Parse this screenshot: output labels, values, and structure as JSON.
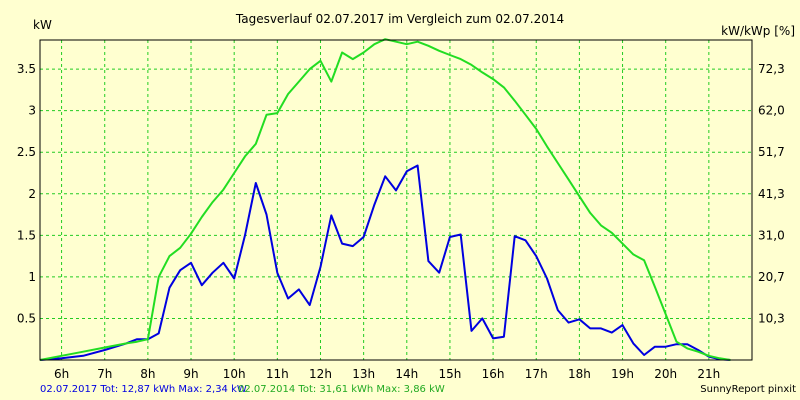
{
  "chart_data": {
    "type": "line",
    "title": "Tagesverlauf 02.07.2017 im Vergleich zum 02.07.2014",
    "ylabel_left": "kW",
    "ylabel_right": "kW/kWp [%]",
    "xlim": [
      5.5,
      22
    ],
    "ylim": [
      0,
      3.85
    ],
    "grid": true,
    "x_ticks": [
      {
        "value": 6,
        "label": "6h"
      },
      {
        "value": 7,
        "label": "7h"
      },
      {
        "value": 8,
        "label": "8h"
      },
      {
        "value": 9,
        "label": "9h"
      },
      {
        "value": 10,
        "label": "10h"
      },
      {
        "value": 11,
        "label": "11h"
      },
      {
        "value": 12,
        "label": "12h"
      },
      {
        "value": 13,
        "label": "13h"
      },
      {
        "value": 14,
        "label": "14h"
      },
      {
        "value": 15,
        "label": "15h"
      },
      {
        "value": 16,
        "label": "16h"
      },
      {
        "value": 17,
        "label": "17h"
      },
      {
        "value": 18,
        "label": "18h"
      },
      {
        "value": 19,
        "label": "19h"
      },
      {
        "value": 20,
        "label": "20h"
      },
      {
        "value": 21,
        "label": "21h"
      }
    ],
    "y_ticks_left": [
      {
        "value": 0.5,
        "label": "0.5"
      },
      {
        "value": 1,
        "label": "1"
      },
      {
        "value": 1.5,
        "label": "1.5"
      },
      {
        "value": 2,
        "label": "2"
      },
      {
        "value": 2.5,
        "label": "2.5"
      },
      {
        "value": 3,
        "label": "3"
      },
      {
        "value": 3.5,
        "label": "3.5"
      }
    ],
    "y_ticks_right": [
      {
        "value": 0.5,
        "label": "10,3"
      },
      {
        "value": 1,
        "label": "20,7"
      },
      {
        "value": 1.5,
        "label": "31,0"
      },
      {
        "value": 2,
        "label": "41,3"
      },
      {
        "value": 2.5,
        "label": "51,7"
      },
      {
        "value": 3,
        "label": "62,0"
      },
      {
        "value": 3.5,
        "label": "72,3"
      }
    ],
    "series": [
      {
        "color": "#0000e0",
        "x": [
          5.5,
          6.0,
          6.5,
          7.0,
          7.5,
          7.75,
          8.0,
          8.25,
          8.5,
          8.75,
          9.0,
          9.25,
          9.5,
          9.75,
          10.0,
          10.25,
          10.5,
          10.75,
          11.0,
          11.25,
          11.5,
          11.75,
          12.0,
          12.25,
          12.5,
          12.75,
          13.0,
          13.25,
          13.5,
          13.75,
          14.0,
          14.25,
          14.5,
          14.75,
          15.0,
          15.25,
          15.5,
          15.75,
          16.0,
          16.25,
          16.5,
          16.75,
          17.0,
          17.25,
          17.5,
          17.75,
          18.0,
          18.25,
          18.5,
          18.75,
          19.0,
          19.25,
          19.5,
          19.75,
          20.0,
          20.25,
          20.5,
          20.75,
          21.0,
          21.25,
          21.5
        ],
        "y": [
          0.0,
          0.02,
          0.05,
          0.12,
          0.2,
          0.25,
          0.25,
          0.32,
          0.87,
          1.08,
          1.17,
          0.9,
          1.05,
          1.17,
          0.98,
          1.5,
          2.13,
          1.75,
          1.05,
          0.74,
          0.85,
          0.66,
          1.12,
          1.74,
          1.4,
          1.37,
          1.48,
          1.87,
          2.21,
          2.04,
          2.27,
          2.34,
          1.19,
          1.05,
          1.48,
          1.51,
          0.35,
          0.5,
          0.26,
          0.28,
          1.49,
          1.44,
          1.25,
          0.98,
          0.6,
          0.45,
          0.49,
          0.38,
          0.38,
          0.33,
          0.42,
          0.2,
          0.06,
          0.16,
          0.16,
          0.19,
          0.19,
          0.12,
          0.04,
          0.01,
          0.0
        ]
      },
      {
        "color": "#22dd22",
        "x": [
          5.5,
          6.0,
          6.5,
          7.0,
          7.5,
          7.75,
          8.0,
          8.25,
          8.5,
          8.75,
          9.0,
          9.25,
          9.5,
          9.75,
          10.0,
          10.25,
          10.5,
          10.75,
          11.0,
          11.25,
          11.5,
          11.75,
          12.0,
          12.25,
          12.5,
          12.75,
          13.0,
          13.25,
          13.5,
          13.75,
          14.0,
          14.25,
          14.5,
          14.75,
          15.0,
          15.25,
          15.5,
          15.75,
          16.0,
          16.25,
          16.5,
          16.75,
          17.0,
          17.25,
          17.5,
          17.75,
          18.0,
          18.25,
          18.5,
          18.75,
          19.0,
          19.25,
          19.5,
          19.75,
          20.0,
          20.25,
          20.5,
          20.75,
          21.0,
          21.25,
          21.5
        ],
        "y": [
          0.0,
          0.05,
          0.1,
          0.15,
          0.2,
          0.22,
          0.25,
          1.0,
          1.25,
          1.35,
          1.52,
          1.72,
          1.9,
          2.05,
          2.25,
          2.45,
          2.6,
          2.95,
          2.97,
          3.2,
          3.35,
          3.5,
          3.6,
          3.35,
          3.7,
          3.62,
          3.7,
          3.8,
          3.86,
          3.83,
          3.8,
          3.83,
          3.78,
          3.72,
          3.67,
          3.62,
          3.55,
          3.46,
          3.38,
          3.28,
          3.12,
          2.95,
          2.78,
          2.57,
          2.37,
          2.17,
          1.97,
          1.77,
          1.62,
          1.53,
          1.4,
          1.27,
          1.2,
          0.88,
          0.55,
          0.22,
          0.14,
          0.1,
          0.05,
          0.02,
          0.0
        ]
      }
    ]
  },
  "footer": {
    "series1_summary": "02.07.2017 Tot: 12,87 kWh Max: 2,34 kW",
    "series2_summary": "02.07.2014 Tot: 31,61 kWh Max: 3,86 kW",
    "brand": "SunnyReport pinxit"
  },
  "colors": {
    "background": "#ffffd0",
    "grid": "#22cc22",
    "footer_series1": "#0000e0",
    "footer_series2": "#22aa22"
  }
}
